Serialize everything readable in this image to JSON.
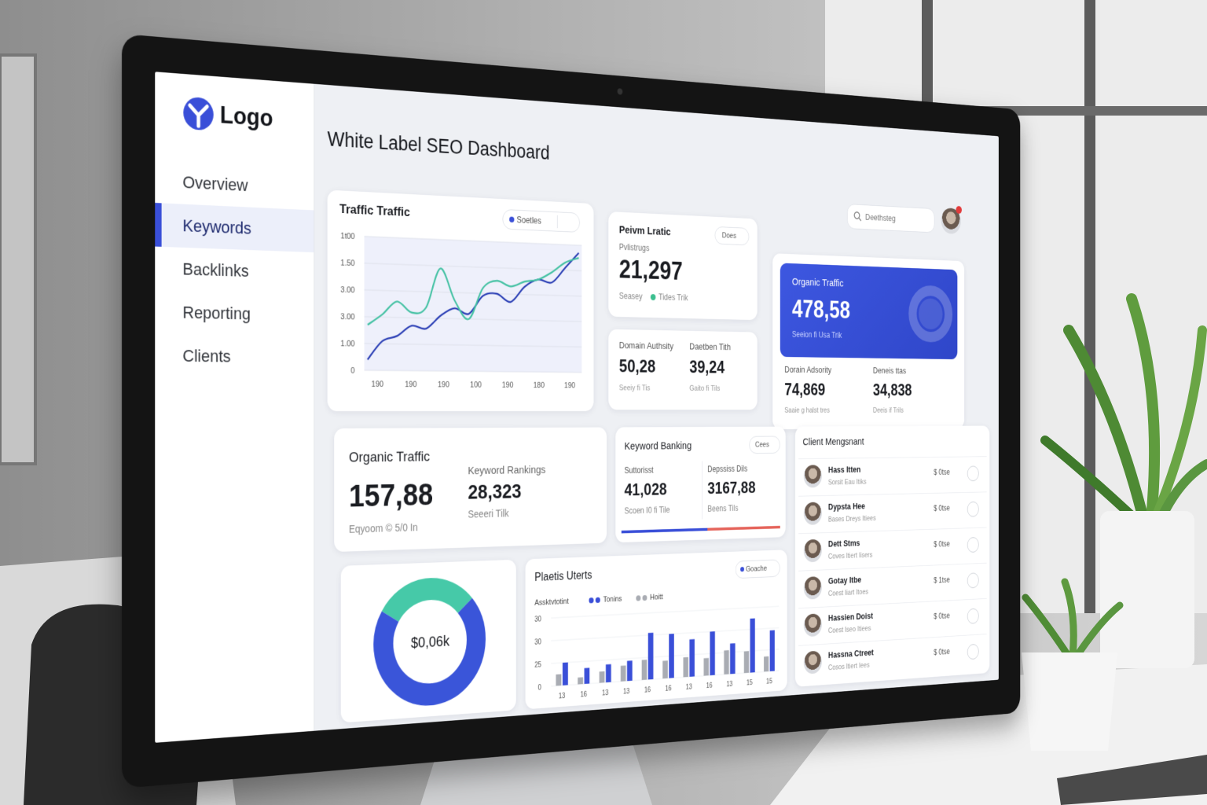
{
  "sidebar": {
    "logo": "Logo",
    "nav": [
      "Overview",
      "Keywords",
      "Backlinks",
      "Reporting",
      "Clients"
    ]
  },
  "header": {
    "title": "White Label SEO Dashboard",
    "search": "Deethsteg"
  },
  "traffic_card": {
    "title": "Traffic Traffic",
    "toggle": "Soetles",
    "chart": {
      "type": "line",
      "y_labels": [
        "1t00",
        "1.50",
        "3.00",
        "3.00",
        "1.00",
        "0"
      ],
      "x_labels": [
        "190",
        "190",
        "190",
        "100",
        "190",
        "180",
        "190"
      ],
      "ylim": [
        0,
        5
      ],
      "series": [
        {
          "color": "#2b3fb5",
          "values": [
            0.4,
            1.1,
            1.3,
            1.7,
            1.6,
            2.1,
            2.4,
            2.2,
            2.9,
            3.0,
            2.7,
            3.3,
            3.6,
            3.5,
            4.1,
            4.7
          ]
        },
        {
          "color": "#46c2a4",
          "values": [
            1.7,
            2.1,
            2.6,
            2.2,
            2.4,
            3.9,
            2.7,
            2.0,
            3.2,
            3.5,
            3.3,
            3.5,
            3.6,
            3.9,
            4.3,
            4.5
          ]
        }
      ]
    }
  },
  "traffic_summary": {
    "title": "Peivm Lratic",
    "button": "Does",
    "label": "Pvlistrugs",
    "value": "21,297",
    "note": "Seasey",
    "note2": "Tides Trik"
  },
  "stats_a": [
    {
      "label": "Domain Authsity",
      "value": "50,28",
      "note": "Seeiy fi Tis"
    },
    {
      "label": "Daetben Tith",
      "value": "39,24",
      "note": "Gaito fi Tils"
    }
  ],
  "organic_card": {
    "title": "Organic Traffic",
    "value": "478,58",
    "note": "Seeion fi Usa Trik"
  },
  "stats_b": [
    {
      "label": "Dorain Adsority",
      "value": "74,869",
      "note": "Saaie g halst tres"
    },
    {
      "label": "Deneis ttas",
      "value": "34,838",
      "note": "Deeis if Trils"
    }
  ],
  "organic_traffic": {
    "title": "Organic Traffic",
    "value": "157,88",
    "note": "Eqyoom © 5/0 In"
  },
  "keyword_rankings": {
    "title": "Keyword Rankings",
    "value": "28,323",
    "note": "Seeeri Tilk"
  },
  "keyword_banking": {
    "title": "Keyword Banking",
    "button": "Cees",
    "items": [
      {
        "label": "Suttorisst",
        "value": "41,028",
        "note": "Scoen I0 fi Tile"
      },
      {
        "label": "Depssiss Dils",
        "value": "3167,88",
        "note": "Beens Tils"
      }
    ]
  },
  "donut": {
    "type": "pie",
    "center": "$0,06k",
    "values": [
      30,
      70
    ],
    "colors": [
      "#46c9a8",
      "#3a55d9"
    ]
  },
  "bar_card": {
    "title": "Plaetis Uterts",
    "toggle": "Goache",
    "chart": {
      "type": "bar",
      "legend_title": "Assktvtotint",
      "y_labels": [
        "30",
        "30",
        "25",
        "0"
      ],
      "x_labels": [
        "13",
        "16",
        "13",
        "13",
        "16",
        "16",
        "13",
        "16",
        "13",
        "15",
        "15"
      ],
      "ylim": [
        0,
        30
      ],
      "series": [
        {
          "name": "Tonins",
          "color": "#3a4fd8",
          "values": [
            10,
            7,
            8,
            9,
            21,
            20,
            17,
            20,
            14,
            25,
            19
          ]
        },
        {
          "name": "Hoitt",
          "color": "#a9acb3",
          "values": [
            5,
            3,
            5,
            7,
            9,
            8,
            9,
            8,
            11,
            10,
            7
          ]
        }
      ]
    }
  },
  "clients": {
    "title": "Client Mengsnant",
    "rows": [
      {
        "name": "Hass Itten",
        "sub": "Sorsit Eau Itiks",
        "amount": "$ 0tse"
      },
      {
        "name": "Dypsta Hee",
        "sub": "Bases Dreys Itiees",
        "amount": "$ 0tse"
      },
      {
        "name": "Dett Stms",
        "sub": "Coves Itiert Iisers",
        "amount": "$ 0tse"
      },
      {
        "name": "Gotay Itbe",
        "sub": "Coest Iiart Itoes",
        "amount": "$ 1tse"
      },
      {
        "name": "Hassien Doist",
        "sub": "Coest Iseo Itiees",
        "amount": "$ 0tse"
      },
      {
        "name": "Hassna Ctreet",
        "sub": "Cosos Itiert Iees",
        "amount": "$ 0tse"
      }
    ]
  }
}
